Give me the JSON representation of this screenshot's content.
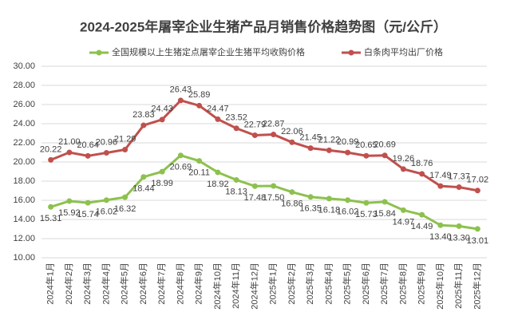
{
  "chart_data": {
    "type": "line",
    "title": "2024-2025年屠宰企业生猪产品月销售价格趋势图（元/公斤）",
    "categories": [
      "2024年1月",
      "2024年2月",
      "2024年3月",
      "2024年4月",
      "2024年5月",
      "2024年6月",
      "2024年7月",
      "2024年8月",
      "2024年9月",
      "2024年10月",
      "2024年11月",
      "2024年12月",
      "2025年1月",
      "2025年2月",
      "2025年3月",
      "2025年4月",
      "2025年5月",
      "2025年6月",
      "2025年7月",
      "2025年8月",
      "2025年9月",
      "2025年10月",
      "2025年11月",
      "2025年12月"
    ],
    "series": [
      {
        "name": "全国规模以上生猪定点屠宰企业生猪平均收购价格",
        "color": "#8dc14e",
        "values": [
          15.31,
          15.92,
          15.74,
          16.02,
          16.32,
          18.44,
          18.99,
          20.69,
          20.11,
          18.92,
          18.13,
          17.48,
          17.5,
          16.86,
          16.35,
          16.18,
          16.02,
          15.73,
          15.84,
          14.97,
          14.49,
          13.4,
          13.3,
          13.01
        ],
        "value_labels": [
          "15.31",
          "15.92",
          "15.74",
          "16.02",
          "16.32",
          "18.44",
          "18.99",
          "20.69",
          "20.11",
          "18.92",
          "18.13",
          "17.48",
          "17.50",
          "16.86",
          "16.35",
          "16.18",
          "16.02",
          "15.73",
          "15.84",
          "14.97",
          "14.49",
          "13.40",
          "13.30",
          "13.01"
        ]
      },
      {
        "name": "白条肉平均出厂价格",
        "color": "#c0504d",
        "values": [
          20.22,
          21.0,
          20.64,
          20.96,
          21.29,
          23.83,
          24.43,
          26.43,
          25.89,
          24.47,
          23.52,
          22.79,
          22.87,
          22.06,
          21.45,
          21.22,
          20.99,
          20.65,
          20.69,
          19.26,
          18.76,
          17.49,
          17.37,
          17.02
        ],
        "value_labels": [
          "20.22",
          "21.00",
          "20.64",
          "20.96",
          "21.29",
          "23.83",
          "24.43",
          "26.43",
          "25.89",
          "24.47",
          "23.52",
          "22.79",
          "22.87",
          "22.06",
          "21.45",
          "21.22",
          "20.99",
          "20.65",
          "20.69",
          "19.26",
          "18.76",
          "17.49",
          "17.37",
          "17.02"
        ]
      }
    ],
    "ylim": [
      10,
      30
    ],
    "yticks": [
      {
        "value": 10,
        "label": "10.00"
      },
      {
        "value": 12,
        "label": "12.00"
      },
      {
        "value": 14,
        "label": "14.00"
      },
      {
        "value": 16,
        "label": "16.00"
      },
      {
        "value": 18,
        "label": "18.00"
      },
      {
        "value": 20,
        "label": "20.00"
      },
      {
        "value": 22,
        "label": "22.00"
      },
      {
        "value": 24,
        "label": "24.00"
      },
      {
        "value": 26,
        "label": "26.00"
      },
      {
        "value": 28,
        "label": "28.00"
      },
      {
        "value": 30,
        "label": "30.00"
      }
    ],
    "grid": true,
    "legend": "top"
  }
}
